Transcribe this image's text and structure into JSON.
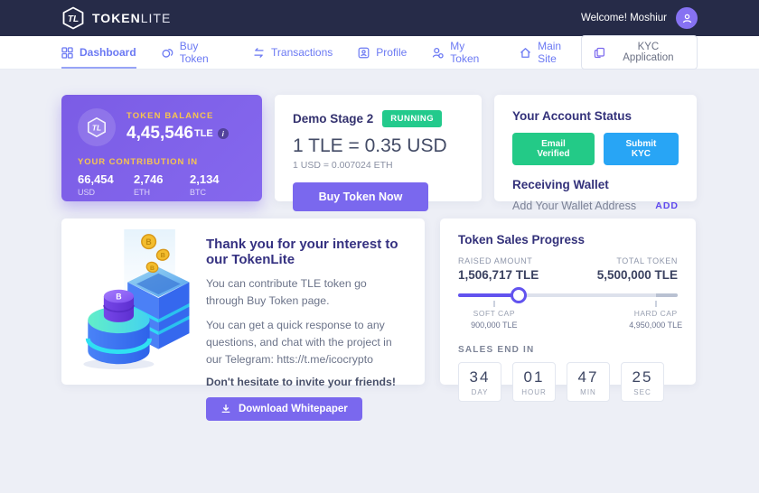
{
  "header": {
    "brand": {
      "bold": "TOKEN",
      "light": "LITE"
    },
    "welcome": "Welcome! Moshiur"
  },
  "nav": {
    "items": [
      {
        "label": "Dashboard",
        "icon": "dashboard-grid-icon",
        "active": true
      },
      {
        "label": "Buy Token",
        "icon": "coins-icon",
        "active": false
      },
      {
        "label": "Transactions",
        "icon": "transfer-arrows-icon",
        "active": false
      },
      {
        "label": "Profile",
        "icon": "id-card-icon",
        "active": false
      },
      {
        "label": "My Token",
        "icon": "user-token-icon",
        "active": false
      },
      {
        "label": "Main Site",
        "icon": "home-icon",
        "active": false
      }
    ],
    "kyc_button": "KYC Application"
  },
  "balance_card": {
    "title": "TOKEN BALANCE",
    "amount": "4,45,546",
    "unit": "TLE",
    "info_icon": "i",
    "contribution_title": "YOUR CONTRIBUTION IN",
    "contributions": [
      {
        "value": "66,454",
        "currency": "USD"
      },
      {
        "value": "2,746",
        "currency": "ETH"
      },
      {
        "value": "2,134",
        "currency": "BTC"
      }
    ]
  },
  "stage_card": {
    "title": "Demo Stage 2",
    "status": "RUNNING",
    "rate_primary": "1 TLE = 0.35 USD",
    "rate_secondary": "1 USD = 0.007024 ETH",
    "buy_button": "Buy Token Now"
  },
  "account_card": {
    "title": "Your Account Status",
    "badges": [
      {
        "label": "Email Verified",
        "color": "#23ca87"
      },
      {
        "label": "Submit KYC",
        "color": "#28a5f5"
      }
    ],
    "wallet_title": "Receiving Wallet",
    "wallet_hint": "Add Your Wallet Address",
    "add_action": "ADD"
  },
  "thanks_card": {
    "title": "Thank you for your interest to our TokenLite",
    "p1": "You can contribute TLE token go through Buy Token page.",
    "p2": "You can get a quick response to any questions, and chat with the project in our Telegram: htts://t.me/icocrypto",
    "note": "Don't hesitate to invite your friends!",
    "download_button": "Download Whitepaper"
  },
  "progress_card": {
    "title": "Token Sales Progress",
    "raised_label": "RAISED AMOUNT",
    "raised_value": "1,506,717 TLE",
    "total_label": "TOTAL TOKEN",
    "total_value": "5,500,000 TLE",
    "progress_percent": 27.4,
    "soft_cap": {
      "label": "SOFT CAP",
      "value": "900,000 TLE",
      "percent": 16.4
    },
    "hard_cap": {
      "label": "HARD CAP",
      "value": "4,950,000 TLE",
      "percent": 90
    },
    "sales_end_label": "SALES END IN",
    "countdown": [
      {
        "value": "34",
        "unit": "DAY"
      },
      {
        "value": "01",
        "unit": "HOUR"
      },
      {
        "value": "47",
        "unit": "MIN"
      },
      {
        "value": "25",
        "unit": "SEC"
      }
    ]
  },
  "colors": {
    "header_bg": "#262b48",
    "nav": "#6b79f3",
    "accent": "#7a68ee",
    "gold": "#f7c54f",
    "running_green": "#23ca8c",
    "progress_purple": "#6253ef",
    "balance_gradient_start": "#7b5ce5",
    "balance_gradient_end": "#8568ee"
  }
}
